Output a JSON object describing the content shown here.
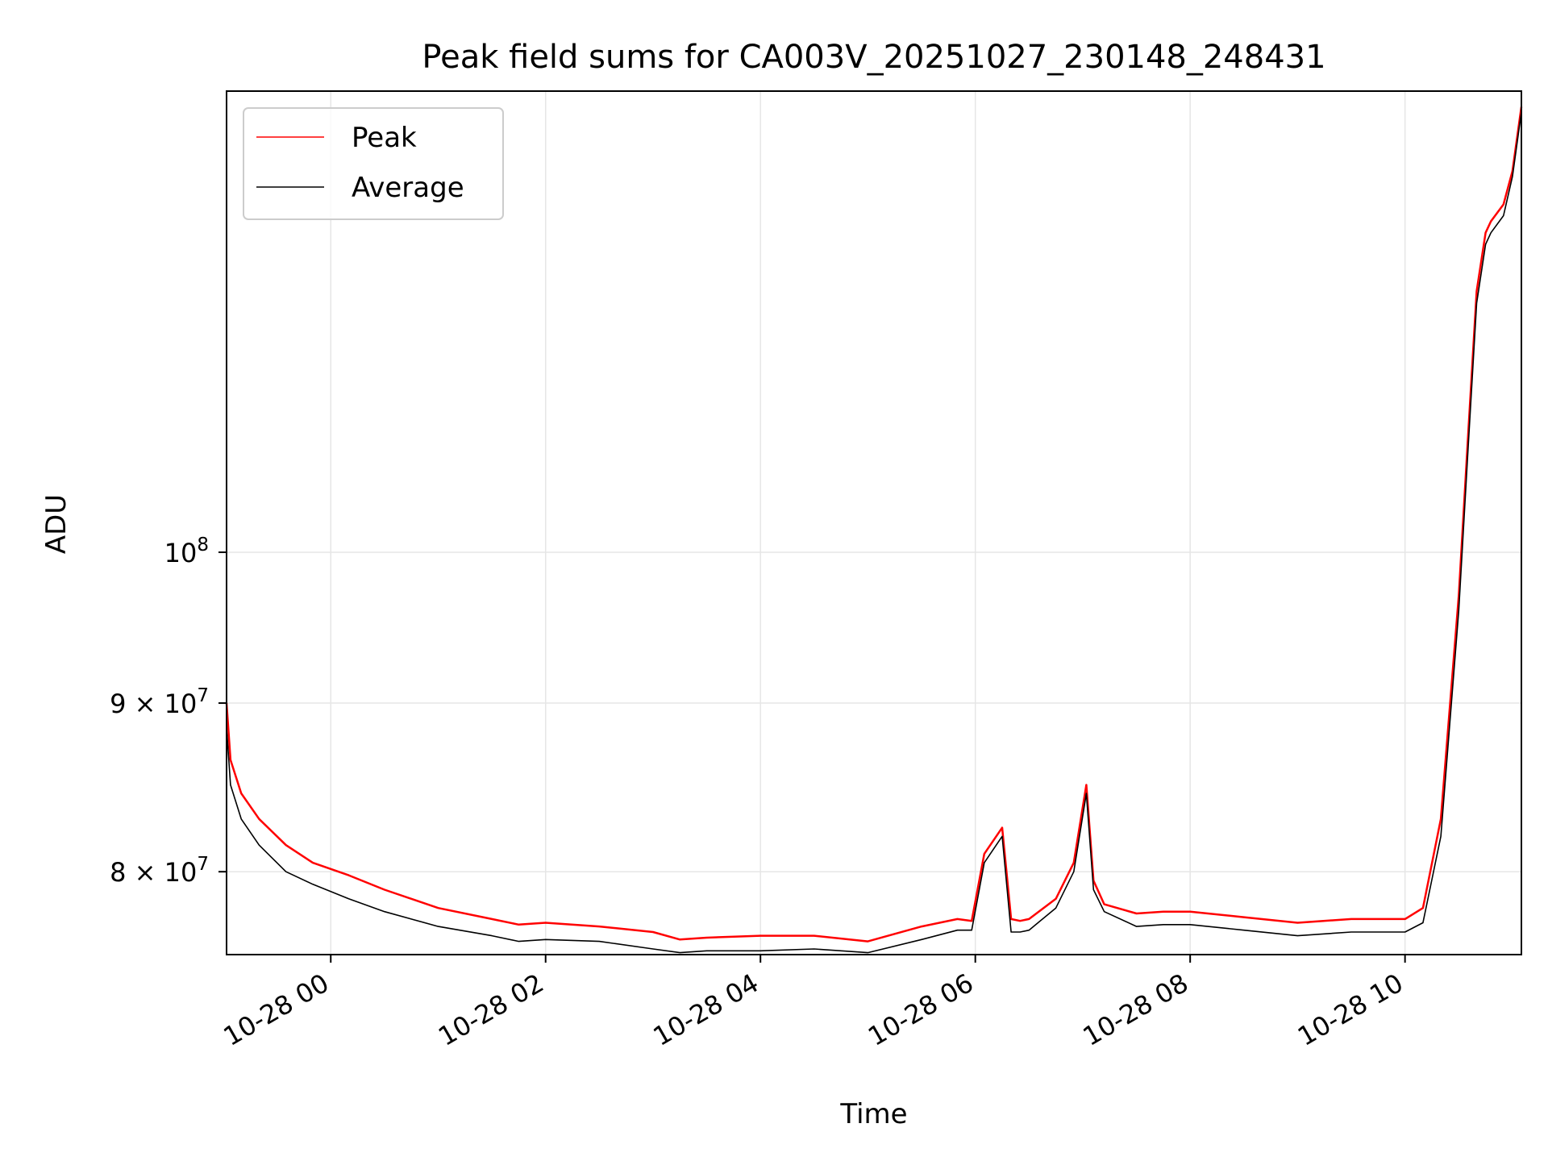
{
  "chart_data": {
    "type": "line",
    "title": "Peak field sums for CA003V_20251027_230148_248431",
    "xlabel": "Time",
    "ylabel": "ADU",
    "y_scale": "log",
    "grid": true,
    "legend_position": "upper-left",
    "x_range": [
      "2025-10-27 23:01:48",
      "2025-10-28 11:05:00"
    ],
    "y_range": [
      75500000,
      138000000
    ],
    "x_ticks": [
      {
        "t": "2025-10-28 00:00",
        "label": "10-28 00"
      },
      {
        "t": "2025-10-28 02:00",
        "label": "10-28 02"
      },
      {
        "t": "2025-10-28 04:00",
        "label": "10-28 04"
      },
      {
        "t": "2025-10-28 06:00",
        "label": "10-28 06"
      },
      {
        "t": "2025-10-28 08:00",
        "label": "10-28 08"
      },
      {
        "t": "2025-10-28 10:00",
        "label": "10-28 10"
      }
    ],
    "y_ticks": [
      {
        "value": 80000000,
        "mantissa": "8",
        "exponent": "7"
      },
      {
        "value": 90000000,
        "mantissa": "9",
        "exponent": "7"
      },
      {
        "value": 100000000,
        "mantissa": "",
        "exponent": "8"
      }
    ],
    "series": [
      {
        "name": "Peak",
        "color": "#ff0000",
        "x": [
          "2025-10-27 23:01:48",
          "2025-10-27 23:04",
          "2025-10-27 23:10",
          "2025-10-27 23:20",
          "2025-10-27 23:35",
          "2025-10-27 23:50",
          "2025-10-28 00:10",
          "2025-10-28 00:30",
          "2025-10-28 01:00",
          "2025-10-28 01:30",
          "2025-10-28 01:45",
          "2025-10-28 02:00",
          "2025-10-28 02:30",
          "2025-10-28 03:00",
          "2025-10-28 03:15",
          "2025-10-28 03:30",
          "2025-10-28 04:00",
          "2025-10-28 04:30",
          "2025-10-28 05:00",
          "2025-10-28 05:30",
          "2025-10-28 05:50",
          "2025-10-28 05:58",
          "2025-10-28 06:05",
          "2025-10-28 06:15",
          "2025-10-28 06:20",
          "2025-10-28 06:25",
          "2025-10-28 06:30",
          "2025-10-28 06:45",
          "2025-10-28 06:55",
          "2025-10-28 07:02",
          "2025-10-28 07:06",
          "2025-10-28 07:12",
          "2025-10-28 07:30",
          "2025-10-28 07:45",
          "2025-10-28 08:00",
          "2025-10-28 08:30",
          "2025-10-28 09:00",
          "2025-10-28 09:30",
          "2025-10-28 10:00",
          "2025-10-28 10:10",
          "2025-10-28 10:20",
          "2025-10-28 10:30",
          "2025-10-28 10:35",
          "2025-10-28 10:40",
          "2025-10-28 10:45",
          "2025-10-28 10:48",
          "2025-10-28 10:55",
          "2025-10-28 11:00",
          "2025-10-28 11:05"
        ],
        "y": [
          90000000,
          86500000,
          84500000,
          83000000,
          81500000,
          80500000,
          79800000,
          79000000,
          78000000,
          77400000,
          77100000,
          77200000,
          77000000,
          76700000,
          76300000,
          76400000,
          76500000,
          76500000,
          76200000,
          77000000,
          77400000,
          77300000,
          81000000,
          82500000,
          77400000,
          77300000,
          77400000,
          78500000,
          80500000,
          85000000,
          79500000,
          78200000,
          77700000,
          77800000,
          77800000,
          77500000,
          77200000,
          77400000,
          77400000,
          78000000,
          83000000,
          97000000,
          108000000,
          120000000,
          125000000,
          126000000,
          127500000,
          130500000,
          136500000
        ]
      },
      {
        "name": "Average",
        "color": "#000000",
        "x": [
          "2025-10-27 23:01:48",
          "2025-10-27 23:04",
          "2025-10-27 23:10",
          "2025-10-27 23:20",
          "2025-10-27 23:35",
          "2025-10-27 23:50",
          "2025-10-28 00:10",
          "2025-10-28 00:30",
          "2025-10-28 01:00",
          "2025-10-28 01:30",
          "2025-10-28 01:45",
          "2025-10-28 02:00",
          "2025-10-28 02:30",
          "2025-10-28 03:00",
          "2025-10-28 03:15",
          "2025-10-28 03:30",
          "2025-10-28 04:00",
          "2025-10-28 04:30",
          "2025-10-28 05:00",
          "2025-10-28 05:30",
          "2025-10-28 05:50",
          "2025-10-28 05:58",
          "2025-10-28 06:05",
          "2025-10-28 06:15",
          "2025-10-28 06:20",
          "2025-10-28 06:25",
          "2025-10-28 06:30",
          "2025-10-28 06:45",
          "2025-10-28 06:55",
          "2025-10-28 07:02",
          "2025-10-28 07:06",
          "2025-10-28 07:12",
          "2025-10-28 07:30",
          "2025-10-28 07:45",
          "2025-10-28 08:00",
          "2025-10-28 08:30",
          "2025-10-28 09:00",
          "2025-10-28 09:30",
          "2025-10-28 10:00",
          "2025-10-28 10:10",
          "2025-10-28 10:20",
          "2025-10-28 10:30",
          "2025-10-28 10:35",
          "2025-10-28 10:40",
          "2025-10-28 10:45",
          "2025-10-28 10:48",
          "2025-10-28 10:55",
          "2025-10-28 11:00",
          "2025-10-28 11:05"
        ],
        "y": [
          88500000,
          85000000,
          83000000,
          81500000,
          80000000,
          79300000,
          78500000,
          77800000,
          77000000,
          76500000,
          76200000,
          76300000,
          76200000,
          75800000,
          75600000,
          75700000,
          75700000,
          75800000,
          75600000,
          76300000,
          76800000,
          76800000,
          80500000,
          82000000,
          76700000,
          76700000,
          76800000,
          78000000,
          80000000,
          84500000,
          79000000,
          77800000,
          77000000,
          77100000,
          77100000,
          76800000,
          76500000,
          76700000,
          76700000,
          77200000,
          82000000,
          96000000,
          107000000,
          119000000,
          124000000,
          125000000,
          126500000,
          130000000,
          136000000
        ]
      }
    ]
  }
}
